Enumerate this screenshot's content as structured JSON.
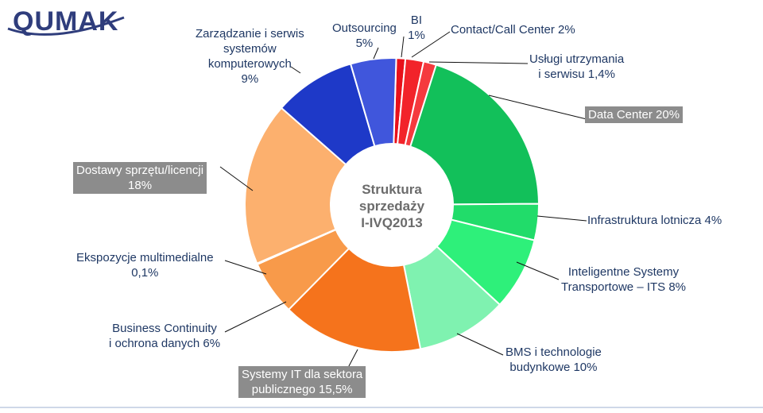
{
  "logo": {
    "text": "QUMAK"
  },
  "center_title": [
    "Struktura",
    "sprzedaży",
    "I-IVQ2013"
  ],
  "chart_data": {
    "type": "pie",
    "donut": true,
    "slices": [
      {
        "label": "BI 1%",
        "value": 1,
        "color": "#e8101a"
      },
      {
        "label": "Contact/Call Center 2%",
        "value": 2,
        "color": "#f2232a"
      },
      {
        "label": "Usługi utrzymania i serwisu 1,4%",
        "value": 1.4,
        "color": "#f53a3e"
      },
      {
        "label": "Data Center 20%",
        "value": 20,
        "color": "#12c05a"
      },
      {
        "label": "Infrastruktura lotnicza 4%",
        "value": 4,
        "color": "#21dc6a"
      },
      {
        "label": "Inteligentne Systemy Transportowe – ITS 8%",
        "value": 8,
        "color": "#2ef07a"
      },
      {
        "label": "BMS i technologie budynkowe 10%",
        "value": 10,
        "color": "#7ff2b0"
      },
      {
        "label": "Systemy IT dla sektora publicznego 15,5%",
        "value": 15.5,
        "color": "#f5731c"
      },
      {
        "label": "Business Continuity i ochrona danych 6%",
        "value": 6,
        "color": "#f89a4a"
      },
      {
        "label": "Ekspozycje multimedialne 0,1%",
        "value": 0.1,
        "color": "#fbb679"
      },
      {
        "label": "Dostawy sprzętu/licencji 18%",
        "value": 18,
        "color": "#fcb06e"
      },
      {
        "label": "Zarządzanie i serwis systemów komputerowych 9%",
        "value": 9,
        "color": "#1e39c8"
      },
      {
        "label": "Outsourcing 5%",
        "value": 5,
        "color": "#4056dc"
      }
    ]
  },
  "labels": {
    "bi": [
      "BI",
      "1%"
    ],
    "contact": [
      "Contact/Call Center 2%"
    ],
    "uslugi": [
      "Usługi utrzymania",
      "i serwisu 1,4%"
    ],
    "datacenter": [
      "Data Center 20%"
    ],
    "lotnicza": [
      "Infrastruktura lotnicza 4%"
    ],
    "its": [
      "Inteligentne Systemy",
      "Transportowe – ITS 8%"
    ],
    "bms": [
      "BMS i technologie",
      "budynkowe 10%"
    ],
    "systemyit": [
      "Systemy IT dla sektora",
      "publicznego 15,5%"
    ],
    "business": [
      "Business Continuity",
      "i ochrona danych 6%"
    ],
    "ekspozycje": [
      "Ekspozycje multimedialne",
      "0,1%"
    ],
    "dostawy": [
      "Dostawy sprzętu/licencji",
      "18%"
    ],
    "zarzadzanie": [
      "Zarządzanie i serwis",
      "systemów",
      "komputerowych",
      "9%"
    ],
    "outsourcing": [
      "Outsourcing",
      "5%"
    ]
  }
}
